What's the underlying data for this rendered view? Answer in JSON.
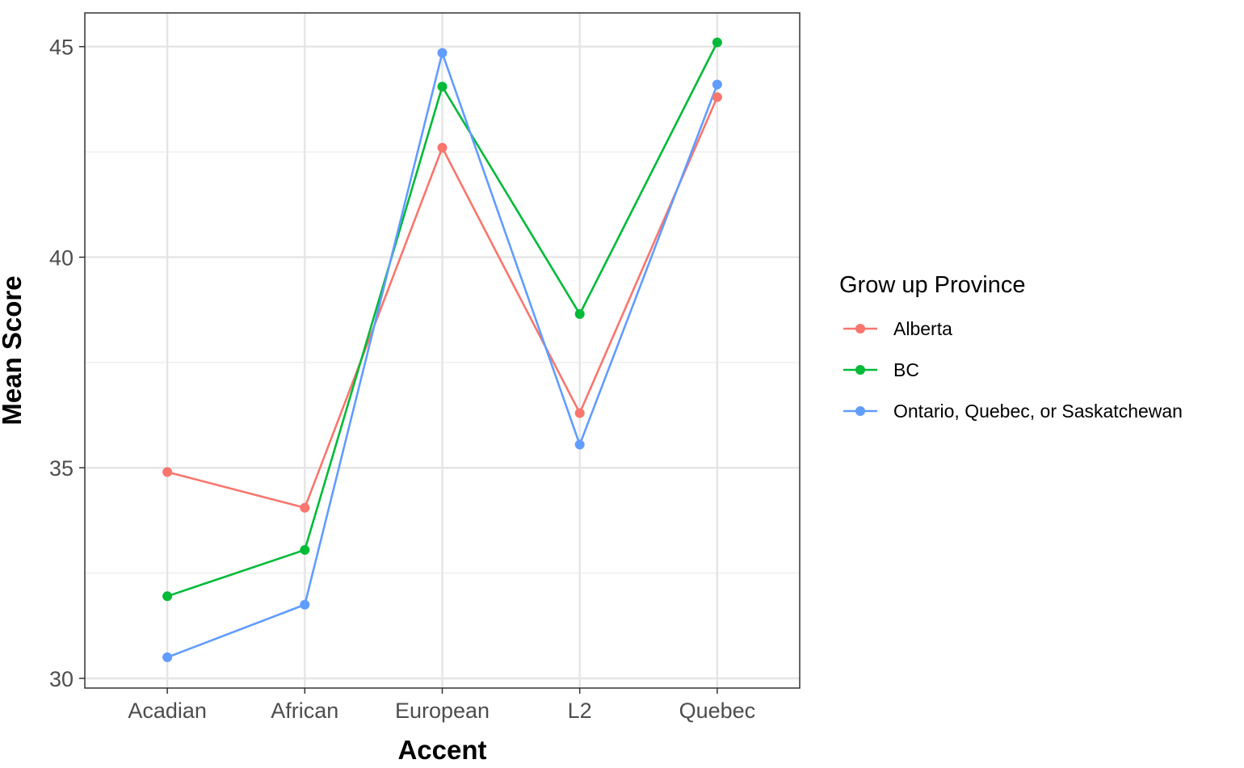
{
  "chart_data": {
    "type": "line",
    "categories": [
      "Acadian",
      "African",
      "European",
      "L2",
      "Quebec"
    ],
    "series": [
      {
        "name": "Alberta",
        "color": "#F8766D",
        "values": [
          34.9,
          34.05,
          42.6,
          36.3,
          43.8
        ]
      },
      {
        "name": "BC",
        "color": "#00BA38",
        "values": [
          31.95,
          33.05,
          44.05,
          38.65,
          45.1
        ]
      },
      {
        "name": "Ontario, Quebec, or Saskatchewan",
        "color": "#619CFF",
        "values": [
          30.5,
          31.75,
          44.85,
          35.55,
          44.1
        ]
      }
    ],
    "xlabel": "Accent",
    "ylabel": "Mean Score",
    "yticks": [
      30,
      35,
      40,
      45
    ],
    "ytick_labels": [
      "30",
      "35",
      "40",
      "45"
    ],
    "ylim": [
      29.77,
      45.8
    ],
    "grid": true,
    "legend_title": "Grow up Province",
    "legend_position": "right"
  }
}
